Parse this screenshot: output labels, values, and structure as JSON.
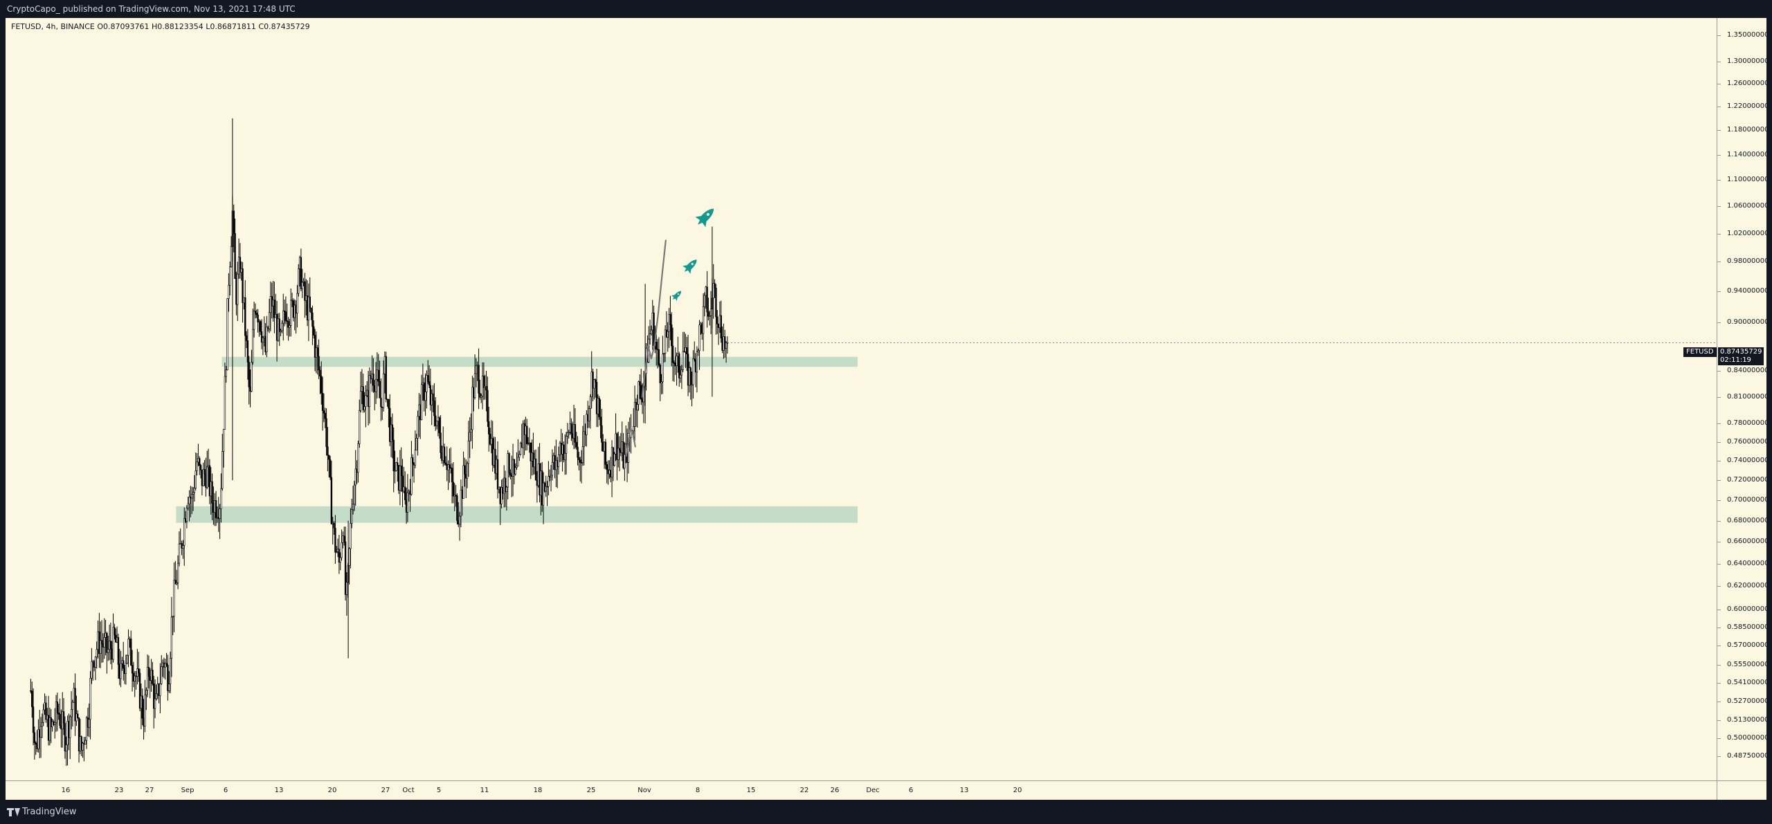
{
  "header": {
    "published": "CryptoCapo_ published on TradingView.com, Nov 13, 2021 17:48 UTC"
  },
  "legend": {
    "symbol": "FETUSD, 4h, BINANCE",
    "open": "O0.87093761",
    "high": "H0.88123354",
    "low": "L0.86871811",
    "close": "C0.87435729"
  },
  "price_tag": {
    "symbol": "FETUSD",
    "price": "0.87435729",
    "countdown": "02:11:19"
  },
  "footer": {
    "brand": "TradingView"
  },
  "colors": {
    "background": "#fcf7e0",
    "zone": "#c5dcc8",
    "candle_up": "#ffffff",
    "candle_down": "#000000",
    "rocket": "#0f9b8e",
    "projection": "#787878"
  },
  "icons": [
    "rocket-icon",
    "tradingview-logo-icon"
  ],
  "chart_data": {
    "type": "candlestick",
    "symbol": "FETUSD",
    "interval": "4h",
    "exchange": "BINANCE",
    "yscale": "log",
    "ylim": [
      0.475,
      1.38
    ],
    "price_ticks": [
      {
        "value": 1.35,
        "label": "1.35000000"
      },
      {
        "value": 1.3,
        "label": "1.30000000"
      },
      {
        "value": 1.26,
        "label": "1.26000000"
      },
      {
        "value": 1.22,
        "label": "1.22000000"
      },
      {
        "value": 1.18,
        "label": "1.18000000"
      },
      {
        "value": 1.14,
        "label": "1.14000000"
      },
      {
        "value": 1.1,
        "label": "1.10000000"
      },
      {
        "value": 1.06,
        "label": "1.06000000"
      },
      {
        "value": 1.02,
        "label": "1.02000000"
      },
      {
        "value": 0.98,
        "label": "0.98000000"
      },
      {
        "value": 0.94,
        "label": "0.94000000"
      },
      {
        "value": 0.9,
        "label": "0.90000000"
      },
      {
        "value": 0.84,
        "label": "0.84000000"
      },
      {
        "value": 0.81,
        "label": "0.81000000"
      },
      {
        "value": 0.78,
        "label": "0.78000000"
      },
      {
        "value": 0.76,
        "label": "0.76000000"
      },
      {
        "value": 0.74,
        "label": "0.74000000"
      },
      {
        "value": 0.72,
        "label": "0.72000000"
      },
      {
        "value": 0.7,
        "label": "0.70000000"
      },
      {
        "value": 0.68,
        "label": "0.68000000"
      },
      {
        "value": 0.66,
        "label": "0.66000000"
      },
      {
        "value": 0.64,
        "label": "0.64000000"
      },
      {
        "value": 0.62,
        "label": "0.62000000"
      },
      {
        "value": 0.6,
        "label": "0.60000000"
      },
      {
        "value": 0.585,
        "label": "0.58500000"
      },
      {
        "value": 0.57,
        "label": "0.57000000"
      },
      {
        "value": 0.555,
        "label": "0.55500000"
      },
      {
        "value": 0.541,
        "label": "0.54100000"
      },
      {
        "value": 0.527,
        "label": "0.52700000"
      },
      {
        "value": 0.513,
        "label": "0.51300000"
      },
      {
        "value": 0.5,
        "label": "0.50000000"
      },
      {
        "value": 0.4875,
        "label": "0.48750000"
      }
    ],
    "time_ticks": [
      {
        "day": 0,
        "label": "16"
      },
      {
        "day": 7,
        "label": "23"
      },
      {
        "day": 11,
        "label": "27"
      },
      {
        "day": 16,
        "label": "Sep"
      },
      {
        "day": 21,
        "label": "6"
      },
      {
        "day": 28,
        "label": "13"
      },
      {
        "day": 35,
        "label": "20"
      },
      {
        "day": 42,
        "label": "27"
      },
      {
        "day": 45,
        "label": "Oct"
      },
      {
        "day": 49,
        "label": "5"
      },
      {
        "day": 55,
        "label": "11"
      },
      {
        "day": 62,
        "label": "18"
      },
      {
        "day": 69,
        "label": "25"
      },
      {
        "day": 76,
        "label": "Nov"
      },
      {
        "day": 83,
        "label": "8"
      },
      {
        "day": 90,
        "label": "15"
      },
      {
        "day": 97,
        "label": "22"
      },
      {
        "day": 101,
        "label": "26"
      },
      {
        "day": 106,
        "label": "Dec"
      },
      {
        "day": 111,
        "label": "6"
      },
      {
        "day": 118,
        "label": "13"
      },
      {
        "day": 125,
        "label": "20"
      }
    ],
    "zones": [
      {
        "low": 0.845,
        "high": 0.857,
        "from_day": 20.5,
        "to_day": 104
      },
      {
        "low": 0.678,
        "high": 0.694,
        "from_day": 14.5,
        "to_day": 104
      }
    ],
    "price_path": [
      [
        -4.5,
        0.535
      ],
      [
        -4,
        0.49
      ],
      [
        -3.2,
        0.52
      ],
      [
        -2,
        0.505
      ],
      [
        -1,
        0.52
      ],
      [
        0,
        0.5
      ],
      [
        1,
        0.53
      ],
      [
        2,
        0.49
      ],
      [
        3,
        0.52
      ],
      [
        3.5,
        0.56
      ],
      [
        4.5,
        0.575
      ],
      [
        5.5,
        0.565
      ],
      [
        6.5,
        0.575
      ],
      [
        7.2,
        0.545
      ],
      [
        8.2,
        0.57
      ],
      [
        9.5,
        0.54
      ],
      [
        10.2,
        0.515
      ],
      [
        11,
        0.555
      ],
      [
        11.8,
        0.52
      ],
      [
        12.8,
        0.56
      ],
      [
        13.5,
        0.545
      ],
      [
        14,
        0.6
      ],
      [
        14.8,
        0.64
      ],
      [
        15.4,
        0.67
      ],
      [
        16,
        0.71
      ],
      [
        16.6,
        0.7
      ],
      [
        17.2,
        0.74
      ],
      [
        17.8,
        0.72
      ],
      [
        18.5,
        0.73
      ],
      [
        19.2,
        0.7
      ],
      [
        19.8,
        0.695
      ],
      [
        20.3,
        0.7
      ],
      [
        20.6,
        0.76
      ],
      [
        21,
        0.84
      ],
      [
        21.4,
        0.96
      ],
      [
        21.9,
        1.05
      ],
      [
        22.3,
        0.93
      ],
      [
        22.9,
        0.98
      ],
      [
        23.5,
        0.9
      ],
      [
        24.2,
        0.8
      ],
      [
        24.8,
        0.93
      ],
      [
        25.6,
        0.9
      ],
      [
        26.2,
        0.86
      ],
      [
        27,
        0.93
      ],
      [
        27.6,
        0.9
      ],
      [
        28.2,
        0.87
      ],
      [
        28.8,
        0.92
      ],
      [
        29.5,
        0.91
      ],
      [
        30.2,
        0.93
      ],
      [
        30.8,
        0.97
      ],
      [
        31.3,
        0.93
      ],
      [
        32.1,
        0.91
      ],
      [
        32.9,
        0.86
      ],
      [
        33.6,
        0.82
      ],
      [
        34.2,
        0.77
      ],
      [
        34.8,
        0.7
      ],
      [
        35.3,
        0.66
      ],
      [
        35.9,
        0.64
      ],
      [
        36.4,
        0.68
      ],
      [
        36.8,
        0.6
      ],
      [
        37.1,
        0.63
      ],
      [
        37.6,
        0.7
      ],
      [
        38.2,
        0.74
      ],
      [
        38.8,
        0.82
      ],
      [
        39.5,
        0.8
      ],
      [
        40.2,
        0.84
      ],
      [
        40.8,
        0.83
      ],
      [
        41.4,
        0.8
      ],
      [
        41.9,
        0.84
      ],
      [
        42.4,
        0.79
      ],
      [
        43,
        0.74
      ],
      [
        43.6,
        0.72
      ],
      [
        44.1,
        0.73
      ],
      [
        44.5,
        0.69
      ],
      [
        45,
        0.71
      ],
      [
        45.6,
        0.74
      ],
      [
        46.2,
        0.78
      ],
      [
        46.8,
        0.81
      ],
      [
        47.4,
        0.83
      ],
      [
        48,
        0.8
      ],
      [
        48.6,
        0.79
      ],
      [
        49.2,
        0.76
      ],
      [
        49.8,
        0.75
      ],
      [
        50.4,
        0.73
      ],
      [
        51,
        0.7
      ],
      [
        51.6,
        0.69
      ],
      [
        52.2,
        0.72
      ],
      [
        52.8,
        0.74
      ],
      [
        53.4,
        0.81
      ],
      [
        54,
        0.84
      ],
      [
        54.6,
        0.82
      ],
      [
        55.3,
        0.8
      ],
      [
        55.9,
        0.76
      ],
      [
        56.5,
        0.73
      ],
      [
        57.1,
        0.71
      ],
      [
        57.7,
        0.72
      ],
      [
        58.3,
        0.74
      ],
      [
        58.9,
        0.72
      ],
      [
        59.5,
        0.73
      ],
      [
        60.1,
        0.78
      ],
      [
        60.7,
        0.76
      ],
      [
        61.3,
        0.74
      ],
      [
        61.9,
        0.73
      ],
      [
        62.6,
        0.71
      ],
      [
        63.2,
        0.72
      ],
      [
        63.8,
        0.74
      ],
      [
        64.4,
        0.73
      ],
      [
        65,
        0.76
      ],
      [
        65.6,
        0.75
      ],
      [
        66.2,
        0.78
      ],
      [
        66.8,
        0.76
      ],
      [
        67.4,
        0.74
      ],
      [
        68,
        0.76
      ],
      [
        68.6,
        0.8
      ],
      [
        69.2,
        0.84
      ],
      [
        69.8,
        0.8
      ],
      [
        70.4,
        0.76
      ],
      [
        71,
        0.73
      ],
      [
        71.6,
        0.74
      ],
      [
        72.2,
        0.76
      ],
      [
        72.8,
        0.75
      ],
      [
        73.4,
        0.74
      ],
      [
        74,
        0.76
      ],
      [
        74.6,
        0.79
      ],
      [
        75.1,
        0.82
      ],
      [
        75.6,
        0.81
      ],
      [
        76.1,
        0.84
      ],
      [
        76.6,
        0.88
      ],
      [
        77.1,
        0.9
      ],
      [
        77.6,
        0.86
      ],
      [
        78.1,
        0.84
      ],
      [
        78.6,
        0.86
      ],
      [
        79.1,
        0.9
      ],
      [
        79.6,
        0.87
      ],
      [
        80.1,
        0.85
      ],
      [
        80.6,
        0.84
      ],
      [
        81.1,
        0.87
      ],
      [
        81.6,
        0.84
      ],
      [
        82.1,
        0.83
      ],
      [
        82.6,
        0.85
      ],
      [
        83.1,
        0.88
      ],
      [
        83.6,
        0.9
      ],
      [
        84.1,
        0.93
      ],
      [
        84.6,
        0.9
      ],
      [
        85,
        0.95
      ],
      [
        85.5,
        0.92
      ],
      [
        85.9,
        0.9
      ],
      [
        86.3,
        0.88
      ],
      [
        86.7,
        0.87
      ],
      [
        86.9,
        0.875
      ]
    ],
    "spikes": [
      {
        "day": 21.9,
        "high": 1.2,
        "low": 0.72
      },
      {
        "day": 37.1,
        "high": 0.68,
        "low": 0.56
      },
      {
        "day": 76.1,
        "high": 0.95,
        "low": 0.78
      },
      {
        "day": 84.9,
        "high": 1.03,
        "low": 0.81
      }
    ],
    "projection": [
      [
        75.7,
        0.81
      ],
      [
        76.1,
        0.84
      ],
      [
        76.5,
        0.87
      ],
      [
        76.9,
        0.855
      ],
      [
        77.3,
        0.87
      ],
      [
        77.8,
        0.91
      ],
      [
        78.3,
        0.96
      ],
      [
        78.8,
        1.01
      ]
    ],
    "projection_small": [
      [
        73.6,
        0.745
      ],
      [
        73.9,
        0.76
      ],
      [
        74.2,
        0.775
      ],
      [
        74.5,
        0.768
      ],
      [
        74.8,
        0.755
      ]
    ],
    "rockets": [
      {
        "day": 80.3,
        "price": 0.935,
        "size": "small"
      },
      {
        "day": 82.1,
        "price": 0.975,
        "size": "medium"
      },
      {
        "day": 84.1,
        "price": 1.045,
        "size": "large"
      }
    ],
    "last": {
      "day": 86.9,
      "price": 0.87435729
    }
  }
}
